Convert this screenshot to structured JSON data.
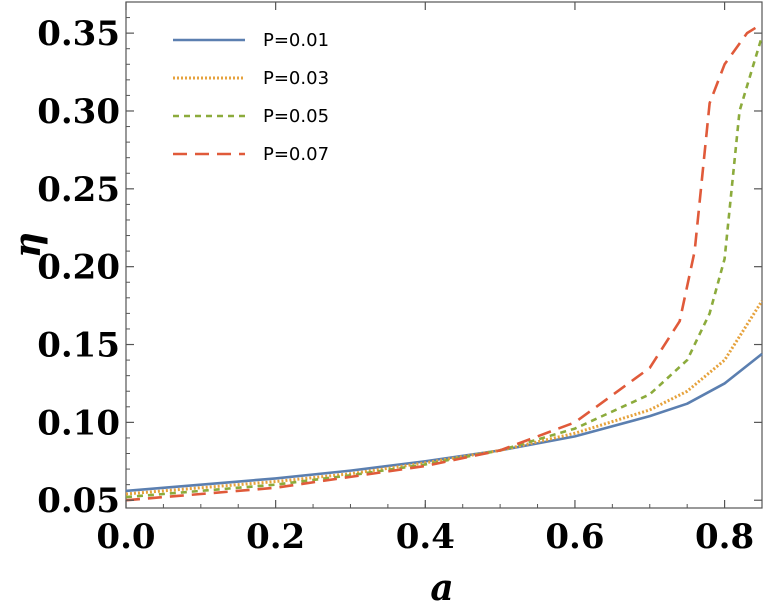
{
  "chart_data": {
    "type": "line",
    "title": "",
    "xlabel": "a",
    "ylabel": "η",
    "xlim": [
      0,
      0.85
    ],
    "ylim": [
      0.045,
      0.37
    ],
    "x_ticks": [
      0.0,
      0.2,
      0.4,
      0.6,
      0.8
    ],
    "x_tick_labels": [
      "0.0",
      "0.2",
      "0.4",
      "0.6",
      "0.8"
    ],
    "y_ticks": [
      0.05,
      0.1,
      0.15,
      0.2,
      0.25,
      0.3,
      0.35
    ],
    "y_tick_labels": [
      "0.05",
      "0.10",
      "0.15",
      "0.20",
      "0.25",
      "0.30",
      "0.35"
    ],
    "grid": false,
    "legend_position": "top-left",
    "series": [
      {
        "name": "P=0.01",
        "color": "#5b7fb0",
        "style": "solid",
        "points": [
          [
            0.0,
            0.056
          ],
          [
            0.1,
            0.06
          ],
          [
            0.2,
            0.064
          ],
          [
            0.3,
            0.069
          ],
          [
            0.4,
            0.075
          ],
          [
            0.5,
            0.082
          ],
          [
            0.6,
            0.091
          ],
          [
            0.7,
            0.104
          ],
          [
            0.75,
            0.112
          ],
          [
            0.8,
            0.125
          ],
          [
            0.85,
            0.144
          ]
        ]
      },
      {
        "name": "P=0.03",
        "color": "#e6a23c",
        "style": "dotted",
        "points": [
          [
            0.0,
            0.054
          ],
          [
            0.1,
            0.058
          ],
          [
            0.2,
            0.062
          ],
          [
            0.3,
            0.067
          ],
          [
            0.4,
            0.074
          ],
          [
            0.5,
            0.082
          ],
          [
            0.6,
            0.093
          ],
          [
            0.7,
            0.108
          ],
          [
            0.75,
            0.12
          ],
          [
            0.8,
            0.14
          ],
          [
            0.85,
            0.178
          ]
        ]
      },
      {
        "name": "P=0.05",
        "color": "#8cab3c",
        "style": "dashed",
        "points": [
          [
            0.0,
            0.052
          ],
          [
            0.1,
            0.056
          ],
          [
            0.2,
            0.06
          ],
          [
            0.3,
            0.066
          ],
          [
            0.4,
            0.073
          ],
          [
            0.5,
            0.082
          ],
          [
            0.6,
            0.096
          ],
          [
            0.7,
            0.118
          ],
          [
            0.75,
            0.14
          ],
          [
            0.78,
            0.17
          ],
          [
            0.8,
            0.205
          ],
          [
            0.82,
            0.3
          ],
          [
            0.85,
            0.348
          ]
        ]
      },
      {
        "name": "P=0.07",
        "color": "#e05a3a",
        "style": "longdash",
        "points": [
          [
            0.0,
            0.05
          ],
          [
            0.1,
            0.054
          ],
          [
            0.2,
            0.058
          ],
          [
            0.3,
            0.065
          ],
          [
            0.4,
            0.072
          ],
          [
            0.5,
            0.082
          ],
          [
            0.6,
            0.1
          ],
          [
            0.7,
            0.135
          ],
          [
            0.74,
            0.165
          ],
          [
            0.76,
            0.21
          ],
          [
            0.78,
            0.305
          ],
          [
            0.8,
            0.33
          ],
          [
            0.83,
            0.35
          ],
          [
            0.85,
            0.356
          ]
        ]
      }
    ]
  }
}
